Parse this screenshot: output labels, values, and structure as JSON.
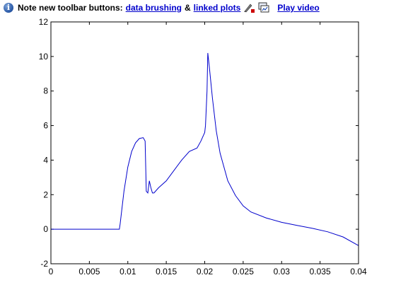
{
  "notice": {
    "text": "Note new toolbar buttons:",
    "link_brushing": "data brushing",
    "ampersand": "&",
    "link_linked": "linked plots",
    "link_video": "Play video",
    "icons": [
      "info-icon",
      "brush-icon",
      "linked-plots-icon"
    ]
  },
  "chart_data": {
    "type": "line",
    "xlim": [
      0,
      0.04
    ],
    "ylim": [
      -2,
      12
    ],
    "xticks": [
      "0",
      "0.005",
      "0.01",
      "0.015",
      "0.02",
      "0.025",
      "0.03",
      "0.035",
      "0.04"
    ],
    "yticks": [
      "-2",
      "0",
      "2",
      "4",
      "6",
      "8",
      "10",
      "12"
    ],
    "grid": false,
    "line_color": "#0000cc",
    "series": [
      {
        "x": [
          0,
          0.005,
          0.0089,
          0.009,
          0.0095,
          0.01,
          0.0105,
          0.011,
          0.0115,
          0.012,
          0.01225,
          0.0124,
          0.0126,
          0.0128,
          0.013,
          0.0132,
          0.0134,
          0.014,
          0.015,
          0.016,
          0.017,
          0.018,
          0.019,
          0.0195,
          0.0198,
          0.02,
          0.0201,
          0.0203,
          0.0204,
          0.0206,
          0.021,
          0.0215,
          0.022,
          0.023,
          0.024,
          0.025,
          0.026,
          0.028,
          0.03,
          0.032,
          0.034,
          0.036,
          0.038,
          0.04
        ],
        "y": [
          0,
          0,
          0,
          0.3,
          2.2,
          3.6,
          4.5,
          5.0,
          5.25,
          5.3,
          5.1,
          2.2,
          2.1,
          2.8,
          2.4,
          2.1,
          2.1,
          2.4,
          2.8,
          3.4,
          4.0,
          4.5,
          4.7,
          5.1,
          5.4,
          5.6,
          6.0,
          8.0,
          10.2,
          9.4,
          7.6,
          5.7,
          4.4,
          2.8,
          1.95,
          1.35,
          1.0,
          0.65,
          0.4,
          0.22,
          0.05,
          -0.15,
          -0.45,
          -0.95
        ]
      }
    ]
  }
}
